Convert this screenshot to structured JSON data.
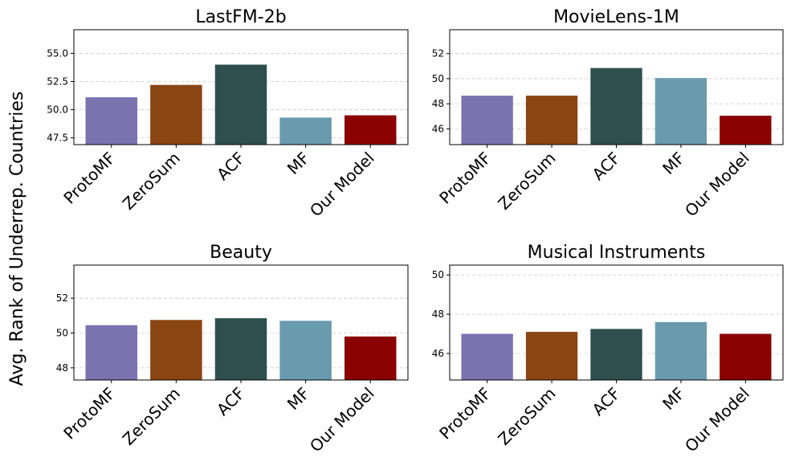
{
  "figure": {
    "ylabel": "Avg. Rank of Underrep. Countries"
  },
  "chart_data": [
    {
      "type": "bar",
      "title": "LastFM-2b",
      "categories": [
        "ProtoMF",
        "ZeroSum",
        "ACF",
        "MF",
        "Our Model"
      ],
      "values": [
        51.1,
        52.2,
        54.0,
        49.3,
        49.5
      ],
      "colors": [
        "#7b72b0",
        "#8b4513",
        "#2f4f4f",
        "#699aae",
        "#8b0000"
      ],
      "ylim": [
        46.9,
        57.1
      ],
      "yticks": [
        47.5,
        50.0,
        52.5,
        55.0
      ],
      "ytick_labels": [
        "47.5",
        "50.0",
        "52.5",
        "55.0"
      ],
      "grid": "y-dashed"
    },
    {
      "type": "bar",
      "title": "MovieLens-1M",
      "categories": [
        "ProtoMF",
        "ZeroSum",
        "ACF",
        "MF",
        "Our Model"
      ],
      "values": [
        48.65,
        48.65,
        50.85,
        50.05,
        47.05
      ],
      "colors": [
        "#7b72b0",
        "#8b4513",
        "#2f4f4f",
        "#699aae",
        "#8b0000"
      ],
      "ylim": [
        44.75,
        53.9
      ],
      "yticks": [
        46,
        48,
        50,
        52
      ],
      "ytick_labels": [
        "46",
        "48",
        "50",
        "52"
      ],
      "grid": "y-dashed"
    },
    {
      "type": "bar",
      "title": "Beauty",
      "categories": [
        "ProtoMF",
        "ZeroSum",
        "ACF",
        "MF",
        "Our Model"
      ],
      "values": [
        50.45,
        50.75,
        50.85,
        50.7,
        49.8
      ],
      "colors": [
        "#7b72b0",
        "#8b4513",
        "#2f4f4f",
        "#699aae",
        "#8b0000"
      ],
      "ylim": [
        47.3,
        53.9
      ],
      "yticks": [
        48,
        50,
        52
      ],
      "ytick_labels": [
        "48",
        "50",
        "52"
      ],
      "grid": "y-dashed"
    },
    {
      "type": "bar",
      "title": "Musical Instruments",
      "categories": [
        "ProtoMF",
        "ZeroSum",
        "ACF",
        "MF",
        "Our Model"
      ],
      "values": [
        47.0,
        47.1,
        47.25,
        47.6,
        47.0
      ],
      "colors": [
        "#7b72b0",
        "#8b4513",
        "#2f4f4f",
        "#699aae",
        "#8b0000"
      ],
      "ylim": [
        44.65,
        50.5
      ],
      "yticks": [
        46,
        48,
        50
      ],
      "ytick_labels": [
        "46",
        "48",
        "50"
      ],
      "grid": "y-dashed"
    }
  ]
}
